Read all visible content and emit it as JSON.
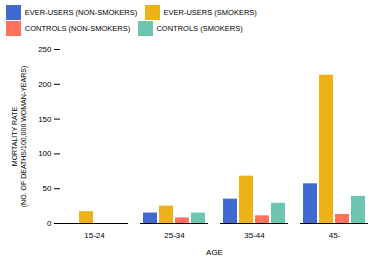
{
  "chart_data": {
    "type": "bar",
    "categories": [
      "15-24",
      "25-34",
      "35-44",
      "45-"
    ],
    "series": [
      {
        "name": "EVER-USERS (NON-SMOKERS)",
        "values": [
          0,
          15,
          35,
          57
        ]
      },
      {
        "name": "EVER-USERS (SMOKERS)",
        "values": [
          17,
          25,
          68,
          213
        ]
      },
      {
        "name": "CONTROLS (NON-SMOKERS)",
        "values": [
          0,
          8,
          11,
          13
        ]
      },
      {
        "name": "CONTROLS (SMOKERS)",
        "values": [
          0,
          15,
          29,
          39
        ]
      }
    ],
    "xlabel": "AGE",
    "ylabel": "MORTALITY RATE\n(NO. OF DEATHS/100,000 WOMAN-YEARS)",
    "ylim": [
      0,
      250
    ],
    "yticks": [
      0,
      50,
      100,
      150,
      200,
      250
    ],
    "grid": false,
    "legend": "top"
  }
}
